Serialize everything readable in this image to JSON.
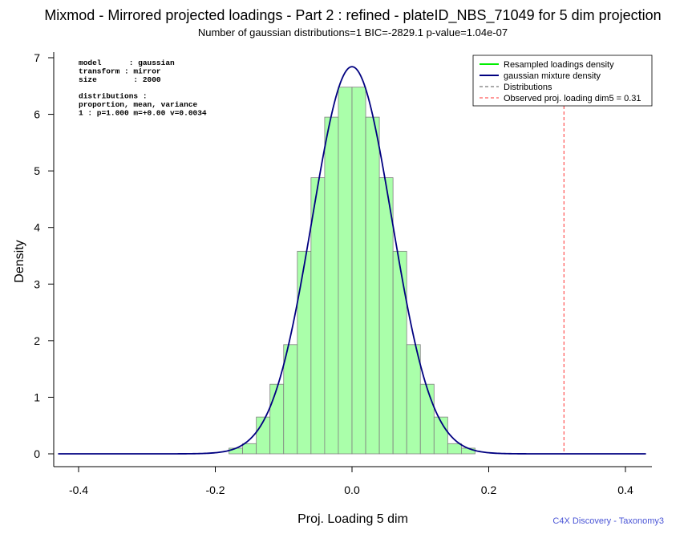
{
  "title": "Mixmod - Mirrored projected loadings - Part 2 : refined - plateID_NBS_71049 for 5 dim projection",
  "subtitle": "Number of gaussian distributions=1   BIC=-2829.1   p-value=1.04e-07",
  "credit": "C4X Discovery - Taxonomy3",
  "info_lines": [
    "model      : gaussian",
    "transform : mirror",
    "size        : 2000",
    "",
    "distributions :",
    "proportion, mean, variance",
    "1 : p=1.000 m=+0.00 v=0.0034"
  ],
  "chart_data": {
    "type": "bar",
    "xlabel": "Proj. Loading 5 dim",
    "ylabel": "Density",
    "xlim": [
      -0.43,
      0.43
    ],
    "ylim": [
      0,
      7
    ],
    "x_ticks": [
      {
        "value": -0.4,
        "label": "-0.4"
      },
      {
        "value": -0.2,
        "label": "-0.2"
      },
      {
        "value": 0.0,
        "label": "0.0"
      },
      {
        "value": 0.2,
        "label": "0.2"
      },
      {
        "value": 0.4,
        "label": "0.4"
      }
    ],
    "y_ticks": [
      {
        "value": 0,
        "label": "0"
      },
      {
        "value": 1,
        "label": "1"
      },
      {
        "value": 2,
        "label": "2"
      },
      {
        "value": 3,
        "label": "3"
      },
      {
        "value": 4,
        "label": "4"
      },
      {
        "value": 5,
        "label": "5"
      },
      {
        "value": 6,
        "label": "6"
      },
      {
        "value": 7,
        "label": "7"
      }
    ],
    "histogram": {
      "bin_width": 0.02,
      "bins": [
        {
          "x0": -0.18,
          "x1": -0.16,
          "density": 0.1
        },
        {
          "x0": -0.16,
          "x1": -0.14,
          "density": 0.18
        },
        {
          "x0": -0.14,
          "x1": -0.12,
          "density": 0.65
        },
        {
          "x0": -0.12,
          "x1": -0.1,
          "density": 1.23
        },
        {
          "x0": -0.1,
          "x1": -0.08,
          "density": 1.93
        },
        {
          "x0": -0.08,
          "x1": -0.06,
          "density": 3.58
        },
        {
          "x0": -0.06,
          "x1": -0.04,
          "density": 4.88
        },
        {
          "x0": -0.04,
          "x1": -0.02,
          "density": 5.95
        },
        {
          "x0": -0.02,
          "x1": 0.0,
          "density": 6.48
        },
        {
          "x0": 0.0,
          "x1": 0.02,
          "density": 6.48
        },
        {
          "x0": 0.02,
          "x1": 0.04,
          "density": 5.95
        },
        {
          "x0": 0.04,
          "x1": 0.06,
          "density": 4.88
        },
        {
          "x0": 0.06,
          "x1": 0.08,
          "density": 3.58
        },
        {
          "x0": 0.08,
          "x1": 0.1,
          "density": 1.93
        },
        {
          "x0": 0.1,
          "x1": 0.12,
          "density": 1.23
        },
        {
          "x0": 0.12,
          "x1": 0.14,
          "density": 0.65
        },
        {
          "x0": 0.14,
          "x1": 0.16,
          "density": 0.18
        },
        {
          "x0": 0.16,
          "x1": 0.18,
          "density": 0.1
        }
      ]
    },
    "mixture": {
      "proportion": 1.0,
      "mean": 0.0,
      "variance": 0.0034
    },
    "observed_loading": 0.31,
    "legend": {
      "placement": "top-right",
      "items": [
        {
          "label": "Resampled loadings density",
          "color": "#00ee00",
          "style": "solid"
        },
        {
          "label": "gaussian mixture density",
          "color": "#000080",
          "style": "solid"
        },
        {
          "label": "Distributions",
          "color": "#555555",
          "style": "dashed"
        },
        {
          "label": "Observed proj. loading dim5 = 0.31",
          "color": "#ff3030",
          "style": "dashed"
        }
      ]
    },
    "colors": {
      "bar_fill": "#aaffaa",
      "bar_stroke": "#808080",
      "density_curve": "#000080",
      "observed_line": "#ff3030"
    }
  }
}
